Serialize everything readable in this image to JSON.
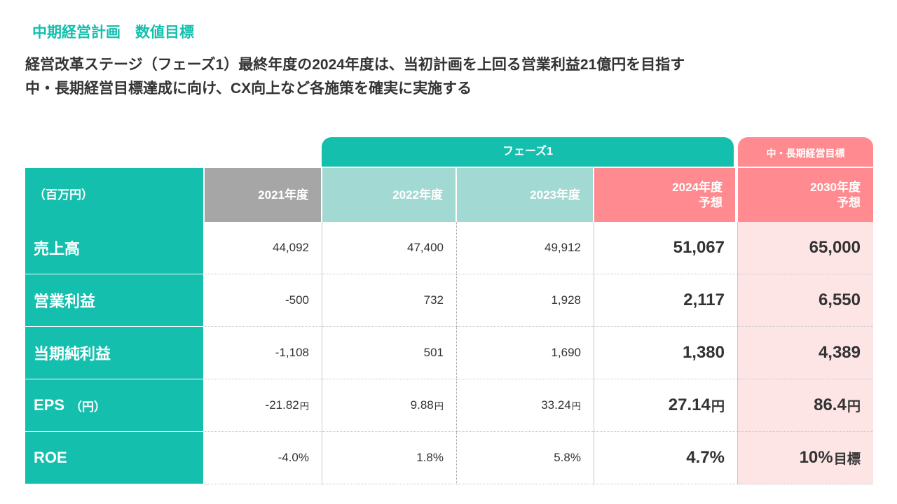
{
  "section_title": "中期経営計画　数値目標",
  "headline": {
    "line1": "経営改革ステージ（フェーズ1）最終年度の2024年度は、当初計画を上回る営業利益21億円を目指す",
    "line2": "中・長期経営目標達成に向け、CX向上など各施策を確実に実施する"
  },
  "tabs": {
    "phase": "フェーズ1",
    "long_term": "中・長期経営目標"
  },
  "table": {
    "unit_label": "（百万円）",
    "columns": {
      "y2021": "2021年度",
      "y2022": "2022年度",
      "y2023": "2023年度",
      "y2024": "2024年度\n予想",
      "y2030": "2030年度\n予想"
    },
    "rows": [
      {
        "label": "売上高",
        "label_unit": "",
        "values": [
          "44,092",
          "47,400",
          "49,912",
          "51,067",
          "65,000"
        ],
        "suffix": [
          "",
          "",
          "",
          "",
          ""
        ]
      },
      {
        "label": "営業利益",
        "label_unit": "",
        "values": [
          "-500",
          "732",
          "1,928",
          "2,117",
          "6,550"
        ],
        "suffix": [
          "",
          "",
          "",
          "",
          ""
        ]
      },
      {
        "label": "当期純利益",
        "label_unit": "",
        "values": [
          "-1,108",
          "501",
          "1,690",
          "1,380",
          "4,389"
        ],
        "suffix": [
          "",
          "",
          "",
          "",
          ""
        ]
      },
      {
        "label": "EPS",
        "label_unit": "（円）",
        "values": [
          "-21.82",
          "9.88",
          "33.24",
          "27.14",
          "86.4"
        ],
        "suffix": [
          "円",
          "円",
          "円",
          "円",
          "円"
        ]
      },
      {
        "label": "ROE",
        "label_unit": "",
        "values": [
          "-4.0%",
          "1.8%",
          "5.8%",
          "4.7%",
          "10%"
        ],
        "suffix": [
          "",
          "",
          "",
          "",
          "目標"
        ]
      }
    ]
  },
  "colors": {
    "teal": "#14bfae",
    "teal_light": "#a3d9d3",
    "gray_header": "#a6a6a6",
    "pink": "#ff8a8f",
    "pink_light": "#fde4e5"
  }
}
